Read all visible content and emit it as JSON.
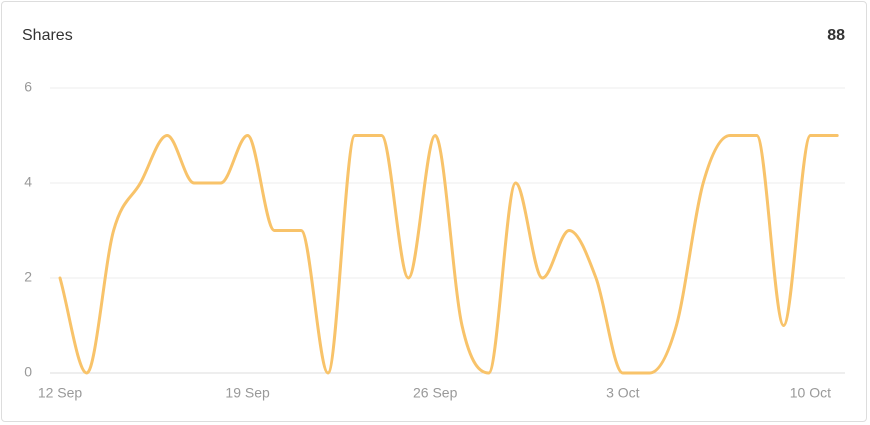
{
  "chart_data": {
    "type": "line",
    "title": "Shares",
    "total": "88",
    "categories": [
      "12 Sep",
      null,
      null,
      null,
      null,
      null,
      null,
      "19 Sep",
      null,
      null,
      null,
      null,
      null,
      null,
      "26 Sep",
      null,
      null,
      null,
      null,
      null,
      null,
      "3 Oct",
      null,
      null,
      null,
      null,
      null,
      null,
      "10 Oct",
      null
    ],
    "series": [
      {
        "name": "Shares",
        "color": "#f8c36a",
        "values": [
          2,
          0,
          3,
          4,
          5,
          4,
          4,
          5,
          3,
          3,
          0,
          5,
          5,
          2,
          5,
          1,
          0,
          4,
          2,
          3,
          2,
          0,
          0,
          1,
          4,
          5,
          5,
          1,
          5,
          5
        ]
      }
    ],
    "ylim": [
      0,
      6
    ],
    "yticks": [
      0,
      2,
      4,
      6
    ],
    "grid": true
  }
}
